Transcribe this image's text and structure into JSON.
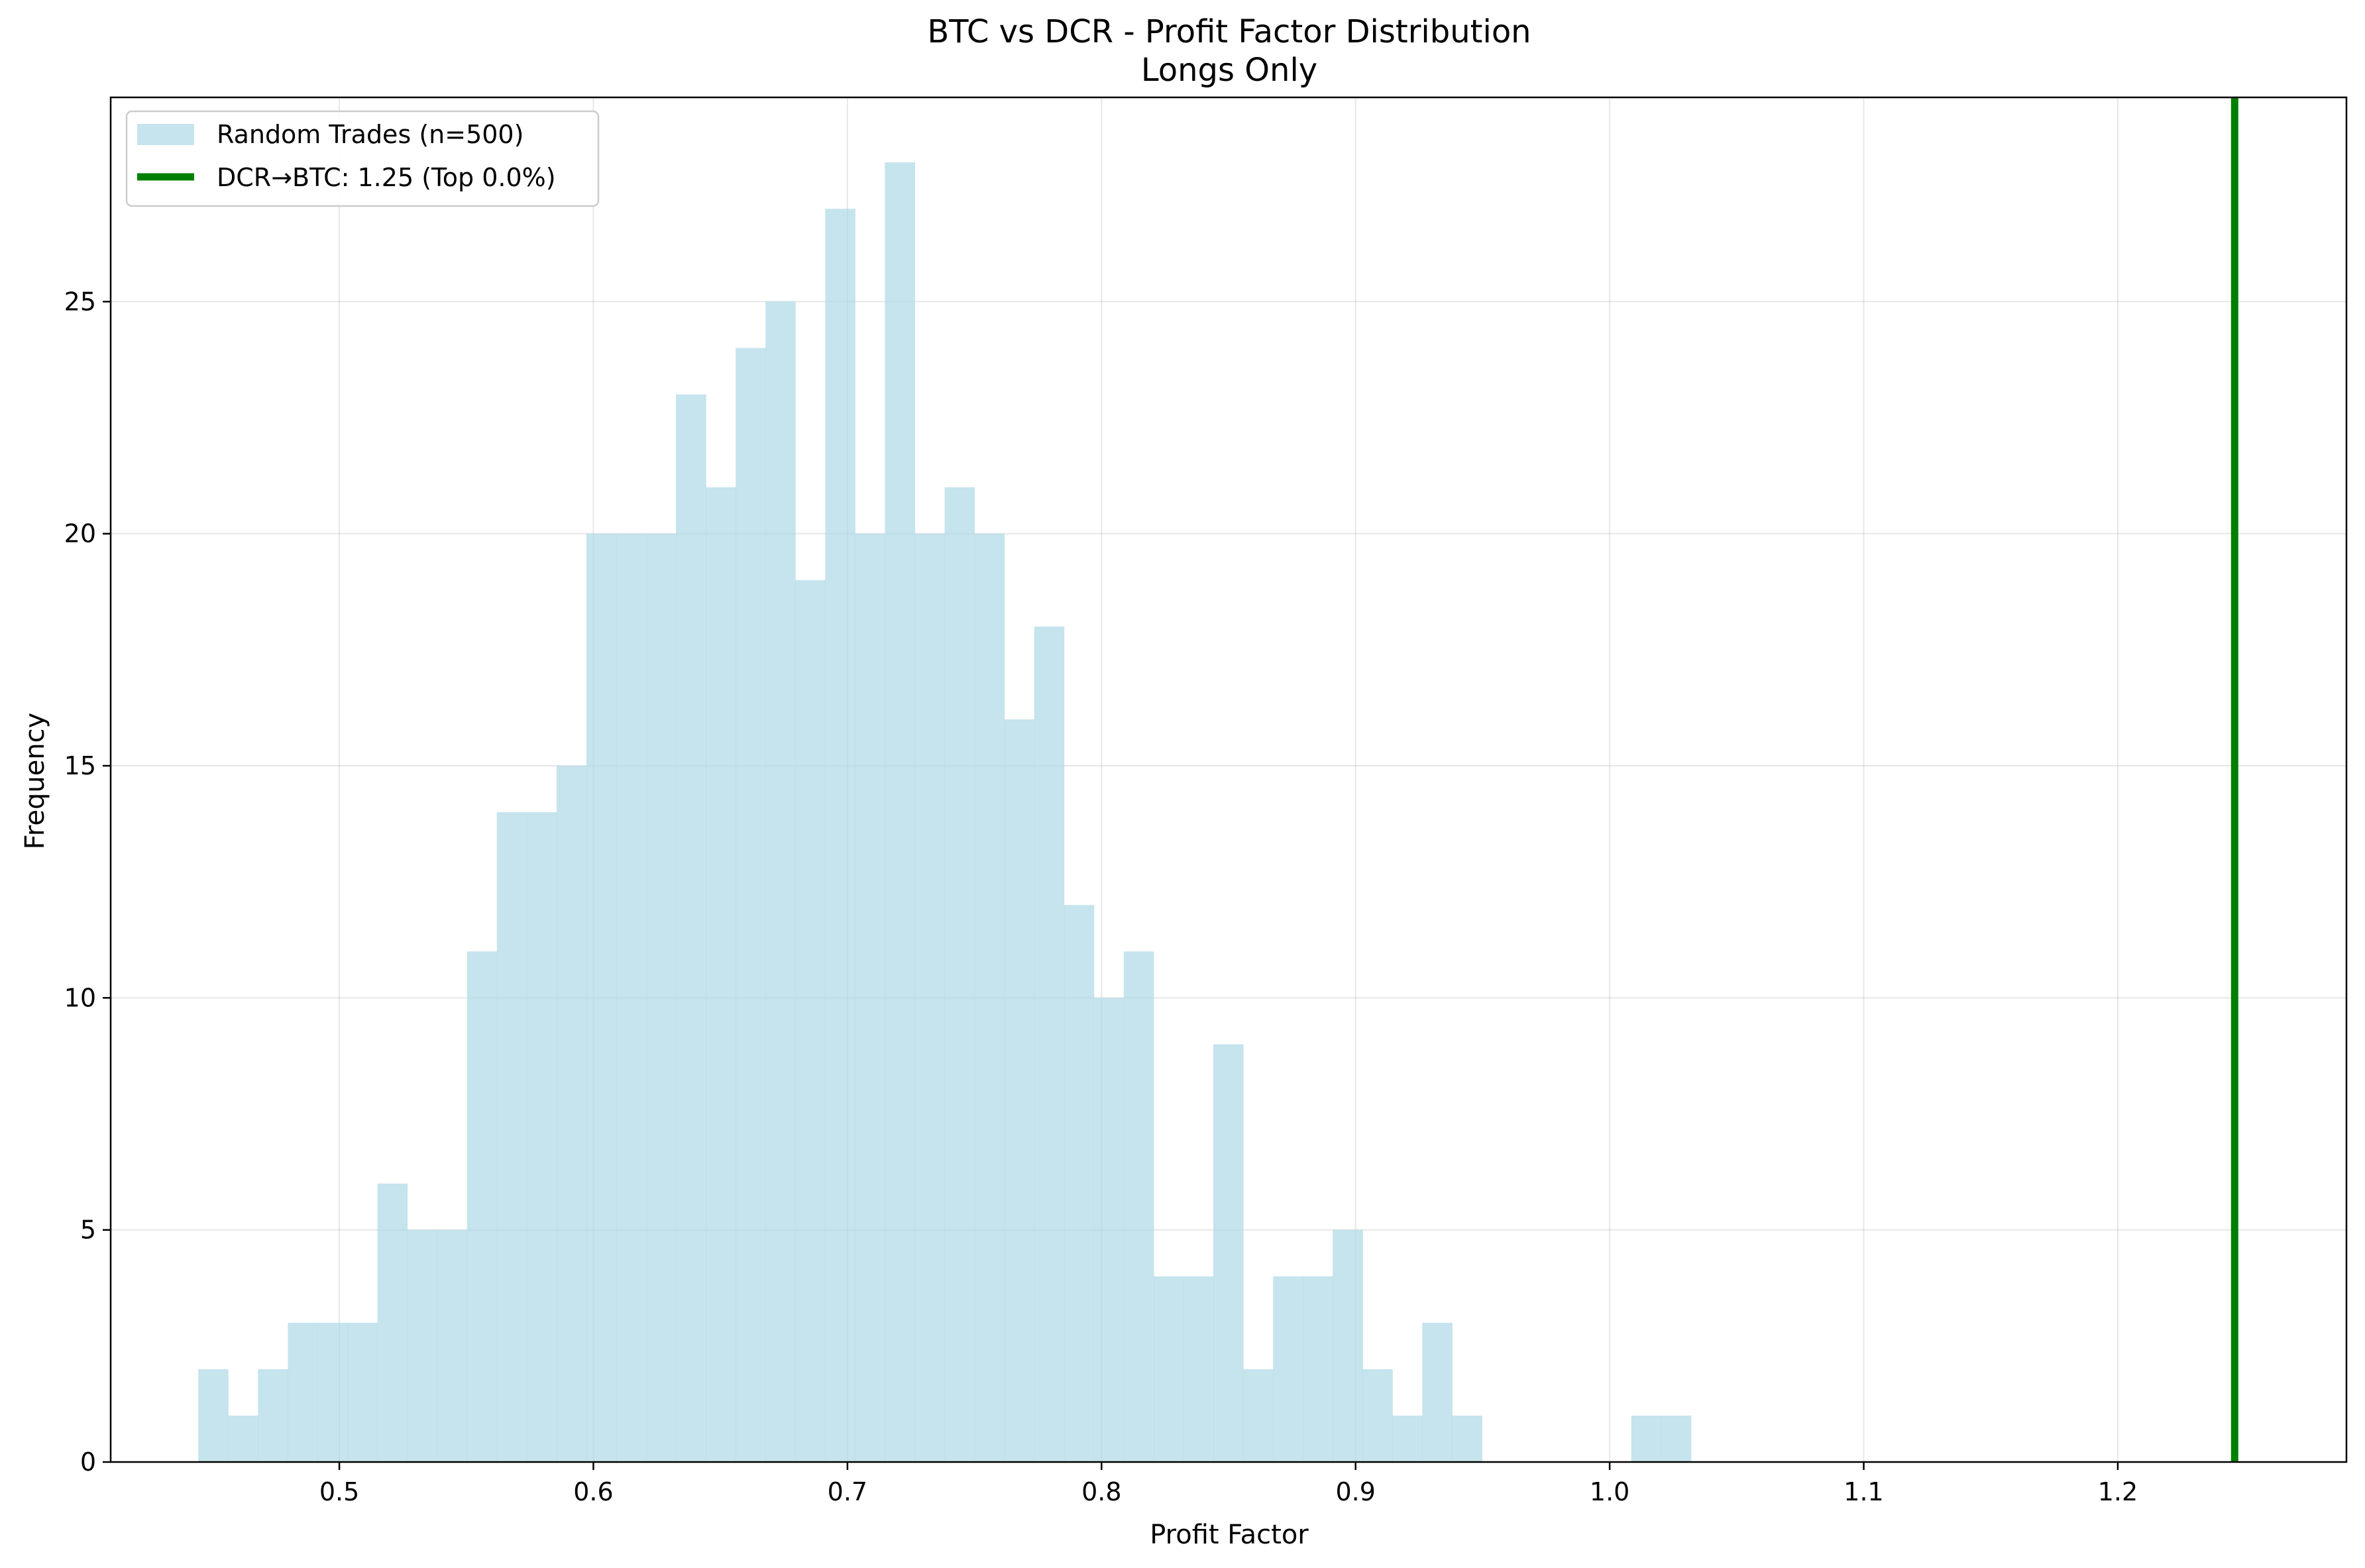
{
  "chart_data": {
    "type": "bar",
    "title": "BTC vs DCR - Profit Factor Distribution",
    "subtitle": "Longs Only",
    "xlabel": "Profit Factor",
    "ylabel": "Frequency",
    "xlim": [
      0.41,
      1.29
    ],
    "ylim": [
      0,
      29.4
    ],
    "xticks": [
      0.5,
      0.6,
      0.7,
      0.8,
      0.9,
      1.0,
      1.1,
      1.2
    ],
    "xtick_labels": [
      "0.5",
      "0.6",
      "0.7",
      "0.8",
      "0.9",
      "1.0",
      "1.1",
      "1.2"
    ],
    "yticks": [
      0,
      5,
      10,
      15,
      20,
      25
    ],
    "ytick_labels": [
      "0",
      "5",
      "10",
      "15",
      "20",
      "25"
    ],
    "grid": true,
    "legend_position": "top-left",
    "histogram": {
      "name": "Random Trades (n=500)",
      "color": "#add8e6",
      "bin_start": 0.4445,
      "bin_width": 0.01175,
      "counts": [
        2,
        1,
        2,
        3,
        3,
        3,
        6,
        5,
        5,
        11,
        14,
        14,
        15,
        20,
        20,
        20,
        23,
        21,
        24,
        25,
        19,
        27,
        20,
        28,
        20,
        21,
        20,
        16,
        18,
        12,
        10,
        11,
        4,
        4,
        9,
        2,
        4,
        4,
        5,
        2,
        1,
        3,
        1,
        0,
        0,
        0,
        0,
        0,
        1,
        1
      ]
    },
    "reference_line": {
      "name": "DCR→BTC: 1.25 (Top 0.0%)",
      "x": 1.246,
      "color": "#008000"
    }
  }
}
